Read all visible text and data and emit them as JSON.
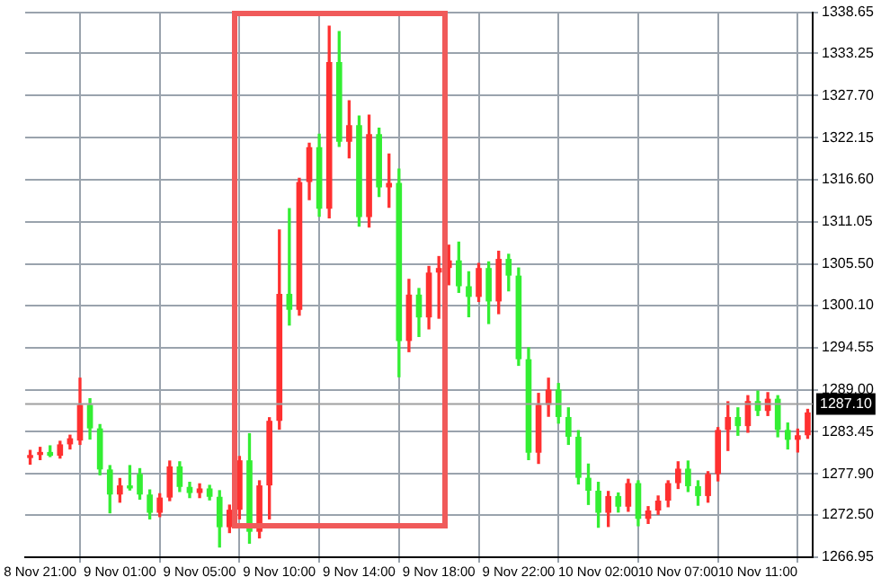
{
  "chart_data": {
    "type": "candlestick",
    "categories": [
      null,
      "8 Nov 21:00",
      null,
      null,
      null,
      null,
      null,
      null,
      null,
      "9 Nov 01:00",
      null,
      null,
      null,
      null,
      null,
      null,
      null,
      "9 Nov 05:00",
      null,
      null,
      null,
      null,
      null,
      null,
      null,
      "9 Nov 10:00",
      null,
      null,
      null,
      null,
      null,
      null,
      null,
      "9 Nov 14:00",
      null,
      null,
      null,
      null,
      null,
      null,
      null,
      "9 Nov 18:00",
      null,
      null,
      null,
      null,
      null,
      null,
      null,
      "9 Nov 22:00",
      null,
      null,
      null,
      null,
      null,
      null,
      null,
      "10 Nov 02:00",
      null,
      null,
      null,
      null,
      null,
      null,
      null,
      "10 Nov 07:00",
      null,
      null,
      null,
      null,
      null,
      null,
      null,
      "10 Nov 11:00",
      null,
      null,
      null,
      null,
      null
    ],
    "ohlc": [
      [
        1280.0,
        1281.0,
        1279.2,
        1280.4
      ],
      [
        1280.4,
        1281.4,
        1279.8,
        1280.8
      ],
      [
        1280.8,
        1281.6,
        1280.2,
        1280.3
      ],
      [
        1280.3,
        1282.2,
        1280.0,
        1281.8
      ],
      [
        1281.8,
        1283.0,
        1281.2,
        1282.6
      ],
      [
        1282.3,
        1290.5,
        1281.8,
        1287.0
      ],
      [
        1287.0,
        1287.8,
        1282.5,
        1283.9
      ],
      [
        1283.9,
        1284.4,
        1277.8,
        1278.5
      ],
      [
        1278.5,
        1279.0,
        1272.8,
        1275.2
      ],
      [
        1275.2,
        1277.3,
        1274.2,
        1276.4
      ],
      [
        1276.4,
        1279.0,
        1275.8,
        1276.0
      ],
      [
        1277.9,
        1278.6,
        1274.6,
        1275.2
      ],
      [
        1275.2,
        1275.8,
        1272.0,
        1272.8
      ],
      [
        1272.8,
        1275.3,
        1272.3,
        1274.8
      ],
      [
        1274.8,
        1279.6,
        1274.4,
        1278.9
      ],
      [
        1278.9,
        1279.5,
        1275.6,
        1276.2
      ],
      [
        1276.2,
        1276.8,
        1274.8,
        1275.4
      ],
      [
        1275.4,
        1276.6,
        1274.8,
        1276.0
      ],
      [
        1276.0,
        1276.4,
        1274.5,
        1274.9
      ],
      [
        1274.9,
        1275.7,
        1268.3,
        1270.9
      ],
      [
        1270.9,
        1273.8,
        1270.2,
        1273.2
      ],
      [
        1273.2,
        1280.2,
        1272.0,
        1279.7
      ],
      [
        1279.7,
        1283.2,
        1268.8,
        1270.3
      ],
      [
        1270.3,
        1277.0,
        1269.5,
        1276.4
      ],
      [
        1276.4,
        1285.3,
        1272.0,
        1284.9
      ],
      [
        1284.9,
        1310.0,
        1283.8,
        1301.6
      ],
      [
        1301.6,
        1312.8,
        1297.5,
        1299.5
      ],
      [
        1299.5,
        1316.8,
        1298.8,
        1316.3
      ],
      [
        1316.3,
        1321.4,
        1314.0,
        1320.9
      ],
      [
        1320.9,
        1322.6,
        1311.8,
        1312.8
      ],
      [
        1312.8,
        1336.8,
        1311.6,
        1332.1
      ],
      [
        1332.1,
        1336.1,
        1321.0,
        1321.6
      ],
      [
        1321.6,
        1327.0,
        1319.5,
        1323.8
      ],
      [
        1323.8,
        1325.0,
        1310.5,
        1311.7
      ],
      [
        1311.7,
        1325.1,
        1310.4,
        1322.6
      ],
      [
        1322.6,
        1323.4,
        1314.4,
        1315.6
      ],
      [
        1315.6,
        1320.0,
        1313.0,
        1316.2
      ],
      [
        1316.2,
        1318.0,
        1290.7,
        1295.4
      ],
      [
        1295.4,
        1303.5,
        1294.0,
        1301.5
      ],
      [
        1301.5,
        1302.3,
        1296.0,
        1298.5
      ],
      [
        1298.5,
        1305.2,
        1297.0,
        1304.4
      ],
      [
        1304.4,
        1306.5,
        1298.4,
        1305.0
      ],
      [
        1305.0,
        1308.0,
        1302.8,
        1306.0
      ],
      [
        1306.0,
        1308.4,
        1301.8,
        1302.6
      ],
      [
        1302.6,
        1304.5,
        1298.6,
        1301.2
      ],
      [
        1301.2,
        1305.6,
        1300.6,
        1305.0
      ],
      [
        1305.0,
        1305.8,
        1297.7,
        1300.6
      ],
      [
        1300.6,
        1307.2,
        1299.0,
        1306.2
      ],
      [
        1306.2,
        1306.8,
        1302.0,
        1304.0
      ],
      [
        1304.0,
        1305.0,
        1292.2,
        1293.0
      ],
      [
        1293.0,
        1294.5,
        1279.8,
        1280.7
      ],
      [
        1280.7,
        1288.5,
        1279.3,
        1287.0
      ],
      [
        1287.0,
        1290.5,
        1285.5,
        1289.0
      ],
      [
        1289.0,
        1289.8,
        1284.6,
        1285.4
      ],
      [
        1285.4,
        1286.6,
        1281.8,
        1282.8
      ],
      [
        1282.8,
        1283.6,
        1276.6,
        1277.4
      ],
      [
        1277.4,
        1279.2,
        1273.9,
        1275.7
      ],
      [
        1275.7,
        1276.8,
        1270.9,
        1272.8
      ],
      [
        1272.8,
        1275.6,
        1271.0,
        1275.0
      ],
      [
        1275.0,
        1275.4,
        1272.9,
        1273.6
      ],
      [
        1273.6,
        1277.2,
        1273.0,
        1276.7
      ],
      [
        1276.7,
        1277.0,
        1271.1,
        1272.0
      ],
      [
        1272.0,
        1273.6,
        1271.4,
        1273.1
      ],
      [
        1273.1,
        1275.0,
        1272.6,
        1274.4
      ],
      [
        1274.4,
        1277.0,
        1273.6,
        1276.7
      ],
      [
        1276.7,
        1279.5,
        1276.0,
        1278.6
      ],
      [
        1278.6,
        1279.6,
        1275.6,
        1276.3
      ],
      [
        1276.3,
        1277.0,
        1273.8,
        1275.0
      ],
      [
        1275.0,
        1278.2,
        1274.2,
        1277.9
      ],
      [
        1277.9,
        1284.0,
        1277.0,
        1283.7
      ],
      [
        1283.7,
        1287.4,
        1281.0,
        1285.4
      ],
      [
        1285.4,
        1286.6,
        1283.0,
        1284.2
      ],
      [
        1284.2,
        1288.2,
        1283.4,
        1287.5
      ],
      [
        1287.5,
        1288.8,
        1285.6,
        1286.2
      ],
      [
        1286.2,
        1288.6,
        1285.6,
        1287.8
      ],
      [
        1287.8,
        1288.2,
        1282.8,
        1283.7
      ],
      [
        1283.7,
        1284.6,
        1281.2,
        1282.4
      ],
      [
        1282.4,
        1283.8,
        1280.8,
        1283.0
      ],
      [
        1283.0,
        1286.4,
        1282.6,
        1286.0
      ]
    ],
    "colors": [
      "#ff3030",
      "#ff3030",
      "#33ee33",
      "#ff3030",
      "#ff3030",
      "#ff3030",
      "#33ee33",
      "#33ee33",
      "#33ee33",
      "#ff3030",
      "#33ee33",
      "#33ee33",
      "#33ee33",
      "#ff3030",
      "#ff3030",
      "#33ee33",
      "#33ee33",
      "#ff3030",
      "#33ee33",
      "#33ee33",
      "#ff3030",
      "#ff3030",
      "#33ee33",
      "#ff3030",
      "#ff3030",
      "#ff3030",
      "#33ee33",
      "#ff3030",
      "#ff3030",
      "#33ee33",
      "#ff3030",
      "#33ee33",
      "#ff3030",
      "#33ee33",
      "#ff3030",
      "#33ee33",
      "#ff3030",
      "#33ee33",
      "#ff3030",
      "#33ee33",
      "#ff3030",
      "#ff3030",
      "#ff3030",
      "#33ee33",
      "#33ee33",
      "#ff3030",
      "#33ee33",
      "#ff3030",
      "#33ee33",
      "#33ee33",
      "#33ee33",
      "#ff3030",
      "#ff3030",
      "#33ee33",
      "#33ee33",
      "#33ee33",
      "#33ee33",
      "#33ee33",
      "#ff3030",
      "#33ee33",
      "#ff3030",
      "#33ee33",
      "#ff3030",
      "#ff3030",
      "#ff3030",
      "#ff3030",
      "#33ee33",
      "#33ee33",
      "#ff3030",
      "#ff3030",
      "#ff3030",
      "#33ee33",
      "#ff3030",
      "#33ee33",
      "#ff3030",
      "#33ee33",
      "#33ee33",
      "#ff3030",
      "#ff3030"
    ],
    "ylim": [
      1266.95,
      1338.65
    ],
    "yticks": [
      1266.95,
      {
        "value": 1272.5,
        "label": "1272.50"
      },
      {
        "value": 1277.9,
        "label": "1277.90"
      },
      1283.45,
      {
        "value": 1289,
        "label": "1289.00"
      },
      1294.55,
      {
        "value": 1300.1,
        "label": "1300.10"
      },
      {
        "value": 1305.5,
        "label": "1305.50"
      },
      1311.05,
      {
        "value": 1316.6,
        "label": "1316.60"
      },
      1322.15,
      {
        "value": 1327.7,
        "label": "1327.70"
      },
      1333.25,
      1338.65
    ],
    "grid": true,
    "ref_lines": [
      {
        "axis": "y",
        "value": 1287.1,
        "label": "1287.10",
        "color": "#a0a0a0"
      }
    ]
  }
}
